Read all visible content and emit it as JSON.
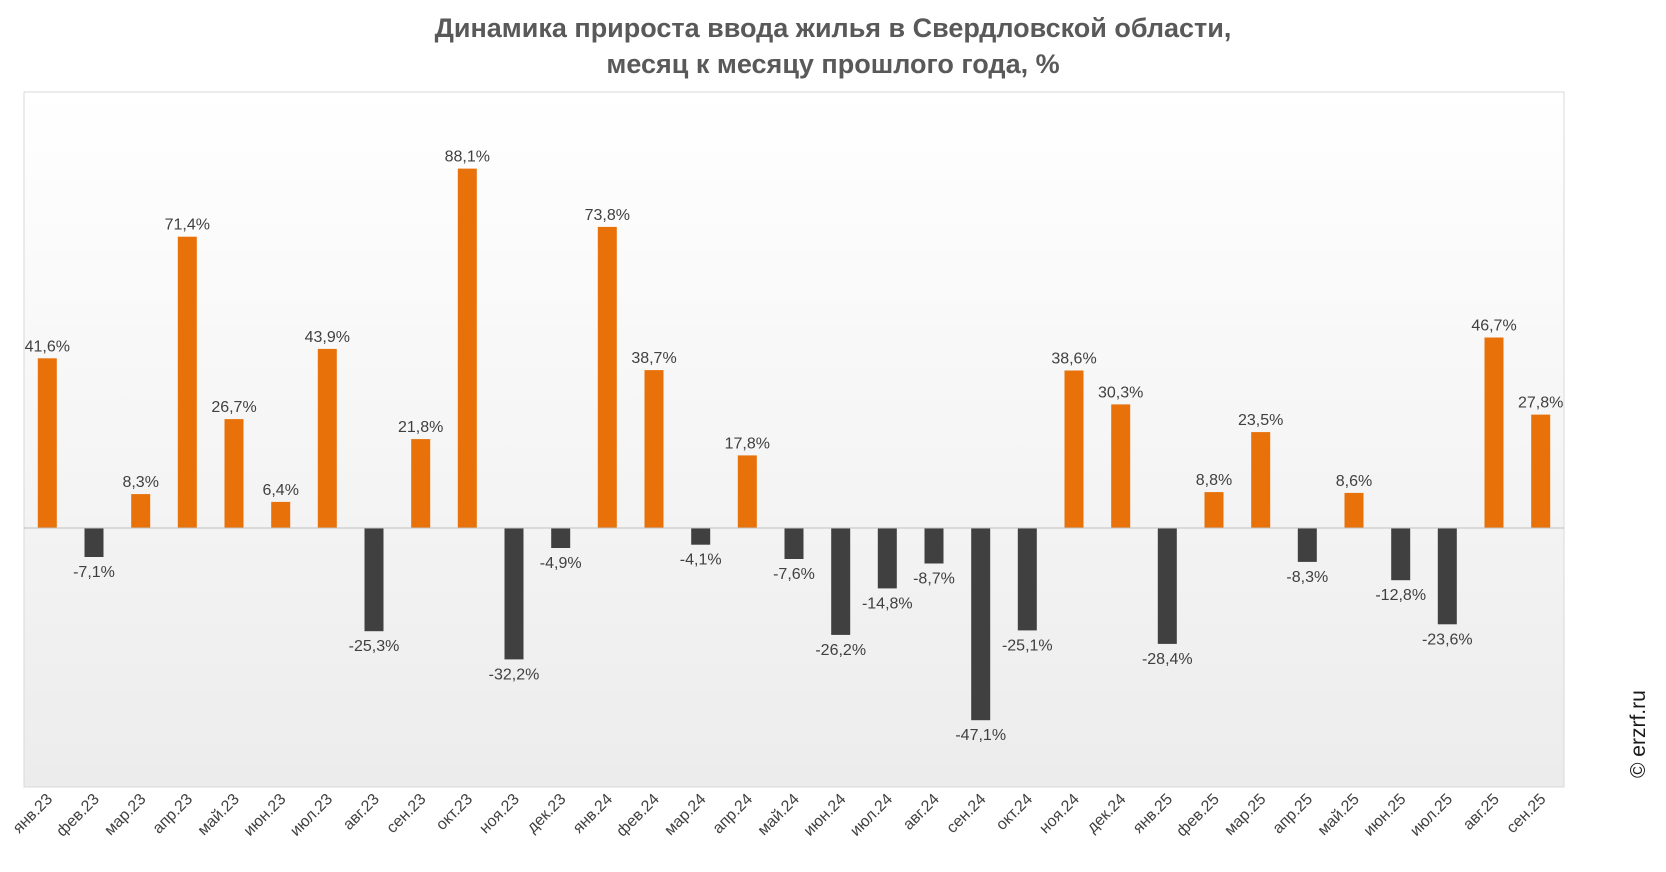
{
  "title_line1": "Динамика прироста ввода жилья в Свердловской области,",
  "title_line2": "месяц к месяцу прошлого года, %",
  "watermark": "© erzrf.ru",
  "colors": {
    "positive": "#E8710A",
    "negative": "#404040",
    "label": "#404040",
    "axis": "#BFBFBF",
    "plot_border": "#D9D9D9"
  },
  "chart_data": {
    "type": "bar",
    "title": "Динамика прироста ввода жилья в Свердловской области, месяц к месяцу прошлого года, %",
    "categories": [
      "янв.23",
      "фев.23",
      "мар.23",
      "апр.23",
      "май.23",
      "июн.23",
      "июл.23",
      "авг.23",
      "сен.23",
      "окт.23",
      "ноя.23",
      "дек.23",
      "янв.24",
      "фев.24",
      "мар.24",
      "апр.24",
      "май.24",
      "июн.24",
      "июл.24",
      "авг.24",
      "сен.24",
      "окт.24",
      "ноя.24",
      "дек.24",
      "янв.25",
      "фев.25",
      "мар.25",
      "апр.25",
      "май.25",
      "июн.25",
      "июл.25",
      "авг.25",
      "сен.25"
    ],
    "values": [
      41.6,
      -7.1,
      8.3,
      71.4,
      26.7,
      6.4,
      43.9,
      -25.3,
      21.8,
      88.1,
      -32.2,
      -4.9,
      73.8,
      38.7,
      -4.1,
      17.8,
      -7.6,
      -26.2,
      -14.8,
      -8.7,
      -47.1,
      -25.1,
      38.6,
      30.3,
      -28.4,
      8.8,
      23.5,
      -8.3,
      8.6,
      -12.8,
      -23.6,
      46.7,
      27.8
    ],
    "data_labels": [
      "41,6%",
      "-7,1%",
      "8,3%",
      "71,4%",
      "26,7%",
      "6,4%",
      "43,9%",
      "-25,3%",
      "21,8%",
      "88,1%",
      "-32,2%",
      "-4,9%",
      "73,8%",
      "38,7%",
      "-4,1%",
      "17,8%",
      "-7,6%",
      "-26,2%",
      "-14,8%",
      "-8,7%",
      "-47,1%",
      "-25,1%",
      "38,6%",
      "30,3%",
      "-28,4%",
      "8,8%",
      "23,5%",
      "-8,3%",
      "8,6%",
      "-12,8%",
      "-23,6%",
      "46,7%",
      "27,8%"
    ],
    "ylim": [
      -60,
      100
    ],
    "grid": false,
    "legend": "none"
  }
}
